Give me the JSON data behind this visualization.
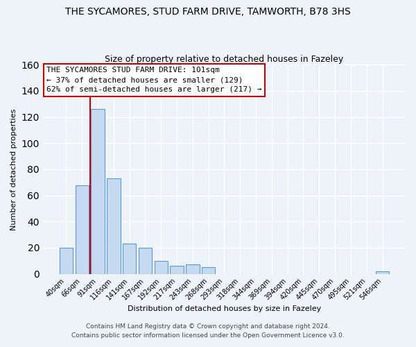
{
  "title": "THE SYCAMORES, STUD FARM DRIVE, TAMWORTH, B78 3HS",
  "subtitle": "Size of property relative to detached houses in Fazeley",
  "xlabel": "Distribution of detached houses by size in Fazeley",
  "ylabel": "Number of detached properties",
  "bar_labels": [
    "40sqm",
    "66sqm",
    "91sqm",
    "116sqm",
    "141sqm",
    "167sqm",
    "192sqm",
    "217sqm",
    "243sqm",
    "268sqm",
    "293sqm",
    "318sqm",
    "344sqm",
    "369sqm",
    "394sqm",
    "420sqm",
    "445sqm",
    "470sqm",
    "495sqm",
    "521sqm",
    "546sqm"
  ],
  "bar_values": [
    20,
    68,
    126,
    73,
    23,
    20,
    10,
    6,
    7,
    5,
    0,
    0,
    0,
    0,
    0,
    0,
    0,
    0,
    0,
    0,
    2
  ],
  "bar_color": "#c5d9f0",
  "bar_edge_color": "#5b9bd5",
  "vline_x": 1.5,
  "vline_color": "#cc0000",
  "ylim": [
    0,
    160
  ],
  "yticks": [
    0,
    20,
    40,
    60,
    80,
    100,
    120,
    140,
    160
  ],
  "annotation_text": "THE SYCAMORES STUD FARM DRIVE: 101sqm\n← 37% of detached houses are smaller (129)\n62% of semi-detached houses are larger (217) →",
  "footer_line1": "Contains HM Land Registry data © Crown copyright and database right 2024.",
  "footer_line2": "Contains public sector information licensed under the Open Government Licence v3.0.",
  "bg_color": "#eef3fa",
  "plot_bg_color": "#eef3fa",
  "grid_color": "#ffffff",
  "title_fontsize": 10,
  "subtitle_fontsize": 9,
  "annotation_fontsize": 8,
  "annotation_box_edgecolor": "#cc0000",
  "tick_fontsize": 7,
  "axis_label_fontsize": 8,
  "footer_fontsize": 6.5
}
